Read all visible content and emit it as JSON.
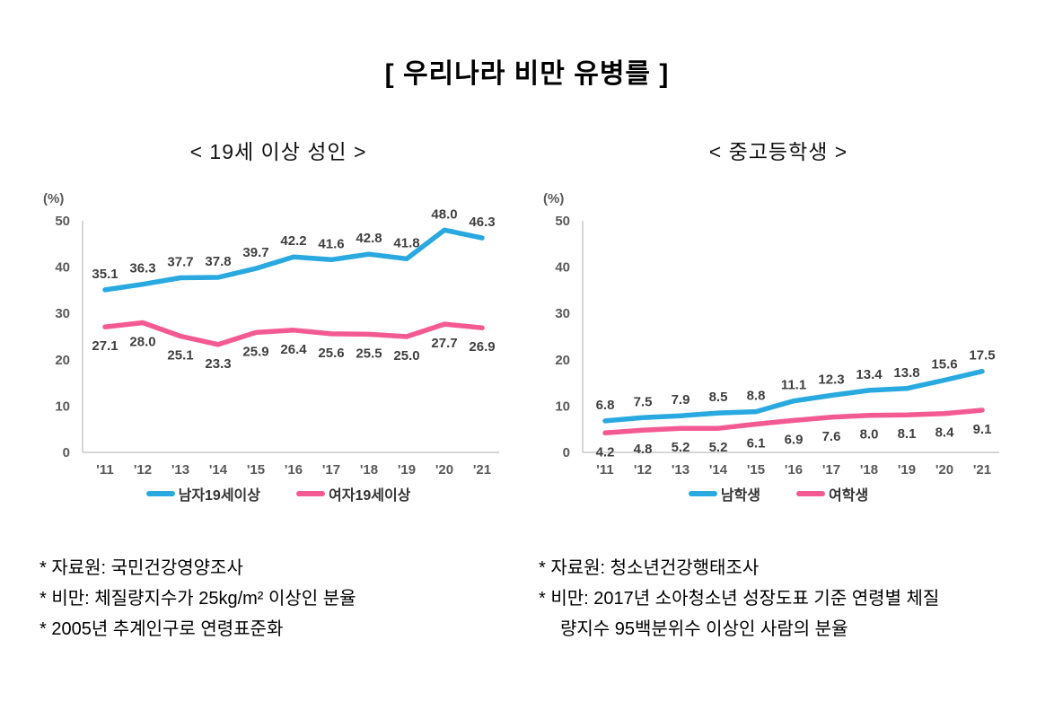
{
  "page": {
    "title": "[ 우리나라 비만 유병를 ]"
  },
  "colors": {
    "male": "#29A9DF",
    "female": "#F45A92",
    "axis": "#C9C9C9",
    "tick_text": "#595959",
    "label_text": "#3F3F3F"
  },
  "chart_data": [
    {
      "type": "line",
      "title": "< 19세 이상 성인 >",
      "unit_label": "(%)",
      "categories": [
        "'11",
        "'12",
        "'13",
        "'14",
        "'15",
        "'16",
        "'17",
        "'18",
        "'19",
        "'20",
        "'21"
      ],
      "ylim": [
        0,
        50
      ],
      "yticks": [
        0,
        10,
        20,
        30,
        40,
        50
      ],
      "grid": false,
      "legend_position": "bottom",
      "series": [
        {
          "name": "남자19세이상",
          "color_key": "male",
          "label_pos": "above",
          "values": [
            35.1,
            36.3,
            37.7,
            37.8,
            39.7,
            42.2,
            41.6,
            42.8,
            41.8,
            48.0,
            46.3
          ]
        },
        {
          "name": "여자19세이상",
          "color_key": "female",
          "label_pos": "below",
          "values": [
            27.1,
            28.0,
            25.1,
            23.3,
            25.9,
            26.4,
            25.6,
            25.5,
            25.0,
            27.7,
            26.9
          ]
        }
      ]
    },
    {
      "type": "line",
      "title": "< 중고등학생 >",
      "unit_label": "(%)",
      "categories": [
        "'11",
        "'12",
        "'13",
        "'14",
        "'15",
        "'16",
        "'17",
        "'18",
        "'19",
        "'20",
        "'21"
      ],
      "ylim": [
        0,
        50
      ],
      "yticks": [
        0,
        10,
        20,
        30,
        40,
        50
      ],
      "grid": false,
      "legend_position": "bottom",
      "series": [
        {
          "name": "남학생",
          "color_key": "male",
          "label_pos": "above",
          "values": [
            6.8,
            7.5,
            7.9,
            8.5,
            8.8,
            11.1,
            12.3,
            13.4,
            13.8,
            15.6,
            17.5
          ]
        },
        {
          "name": "여학생",
          "color_key": "female",
          "label_pos": "below",
          "values": [
            4.2,
            4.8,
            5.2,
            5.2,
            6.1,
            6.9,
            7.6,
            8.0,
            8.1,
            8.4,
            9.1
          ]
        }
      ]
    }
  ],
  "footnotes": {
    "adult": {
      "lines": [
        "* 자료원: 국민건강영양조사",
        "* 비만: 체질량지수가 25kg/m² 이상인 분율",
        "* 2005년 추계인구로 연령표준화"
      ]
    },
    "student": {
      "lines": [
        "* 자료원: 청소년건강행태조사",
        "* 비만: 2017년 소아청소년 성장도표 기준 연령별 체질",
        "량지수 95백분위수 이상인 사람의 분율"
      ]
    }
  }
}
